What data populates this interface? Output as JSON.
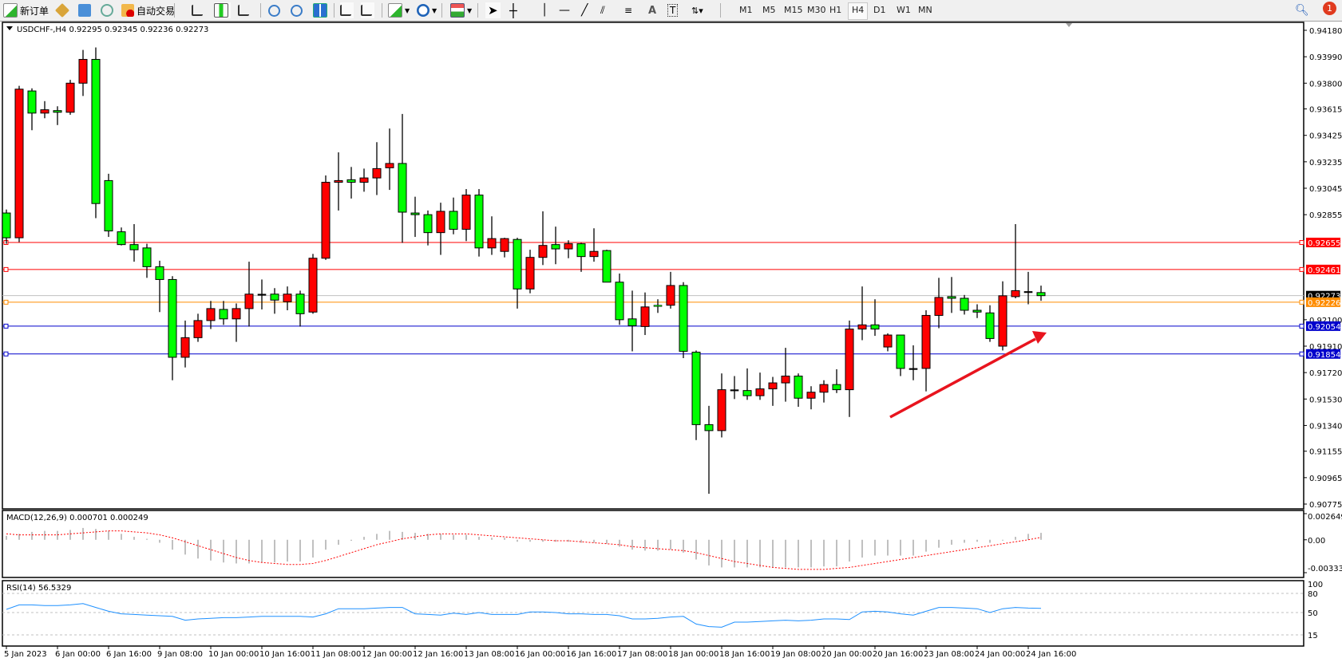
{
  "toolbar": {
    "new_order_label": "新订单",
    "auto_trade_label": "自动交易",
    "timeframes": [
      "M1",
      "M5",
      "M15",
      "M30",
      "H1",
      "H4",
      "D1",
      "W1",
      "MN"
    ],
    "active_timeframe": "H4",
    "notification_count": "1"
  },
  "chart": {
    "header": "USDCHF-,H4  0.92295 0.92345 0.92236 0.92273"
  },
  "chart_data": {
    "type": "candlestick",
    "symbol": "USDCHF-",
    "timeframe": "H4",
    "up_color": "#ff0000",
    "down_color": "#00ff00",
    "ylim": [
      0.90775,
      0.9418
    ],
    "price_ticks": [
      "0.94180",
      "0.93990",
      "0.93800",
      "0.93615",
      "0.93425",
      "0.93235",
      "0.93045",
      "0.92855",
      "0.92100",
      "0.91910",
      "0.91720",
      "0.91530",
      "0.91340",
      "0.91155",
      "0.90965",
      "0.90775"
    ],
    "time_labels": [
      "5 Jan 2023",
      "6 Jan 00:00",
      "6 Jan 16:00",
      "9 Jan 08:00",
      "10 Jan 00:00",
      "10 Jan 16:00",
      "11 Jan 08:00",
      "12 Jan 00:00",
      "12 Jan 16:00",
      "13 Jan 08:00",
      "16 Jan 00:00",
      "16 Jan 16:00",
      "17 Jan 08:00",
      "18 Jan 00:00",
      "18 Jan 16:00",
      "19 Jan 08:00",
      "20 Jan 00:00",
      "20 Jan 16:00",
      "23 Jan 08:00",
      "24 Jan 00:00",
      "24 Jan 16:00"
    ],
    "current_price": {
      "value": 0.92273,
      "label": "0.92273",
      "color": "#000000"
    },
    "hlines": [
      {
        "value": 0.92655,
        "label": "0.92655",
        "color": "#ff0000"
      },
      {
        "value": 0.92461,
        "label": "0.92461",
        "color": "#ff0000"
      },
      {
        "value": 0.92226,
        "label": "0.92226",
        "color": "#ff8c00"
      },
      {
        "value": 0.92054,
        "label": "0.92054",
        "color": "#0000cc"
      },
      {
        "value": 0.91854,
        "label": "0.91854",
        "color": "#0000cc"
      }
    ],
    "trend_arrow": {
      "from": [
        70,
        0.9135
      ],
      "to": [
        82,
        0.9202
      ],
      "color": "#e8141e"
    },
    "candles": [
      [
        0.92867,
        0.92892,
        0.92646,
        0.92689
      ],
      [
        0.92689,
        0.93781,
        0.92658,
        0.93757
      ],
      [
        0.93744,
        0.93763,
        0.93462,
        0.93585
      ],
      [
        0.93585,
        0.93671,
        0.93548,
        0.93609
      ],
      [
        0.93603,
        0.93634,
        0.93499,
        0.93591
      ],
      [
        0.93591,
        0.93824,
        0.93573,
        0.938
      ],
      [
        0.938,
        0.94039,
        0.93708,
        0.93971
      ],
      [
        0.93971,
        0.94057,
        0.9283,
        0.92935
      ],
      [
        0.931,
        0.93149,
        0.92695,
        0.92738
      ],
      [
        0.92732,
        0.92763,
        0.92634,
        0.9264
      ],
      [
        0.9264,
        0.92787,
        0.92517,
        0.92603
      ],
      [
        0.92616,
        0.92646,
        0.92401,
        0.92481
      ],
      [
        0.92481,
        0.92524,
        0.92155,
        0.92389
      ],
      [
        0.92389,
        0.92413,
        0.91665,
        0.9183
      ],
      [
        0.9183,
        0.92094,
        0.91757,
        0.91971
      ],
      [
        0.91971,
        0.92143,
        0.91941,
        0.92094
      ],
      [
        0.92094,
        0.92235,
        0.92033,
        0.9218
      ],
      [
        0.92174,
        0.92235,
        0.92063,
        0.92106
      ],
      [
        0.92106,
        0.92217,
        0.91941,
        0.9218
      ],
      [
        0.9218,
        0.92517,
        0.92051,
        0.92284
      ],
      [
        0.92284,
        0.92389,
        0.92174,
        0.92284
      ],
      [
        0.92284,
        0.92327,
        0.92143,
        0.92241
      ],
      [
        0.92229,
        0.92339,
        0.92168,
        0.92284
      ],
      [
        0.92284,
        0.92309,
        0.92051,
        0.92143
      ],
      [
        0.92155,
        0.92573,
        0.92143,
        0.92542
      ],
      [
        0.92542,
        0.93137,
        0.9253,
        0.93088
      ],
      [
        0.93088,
        0.93303,
        0.92885,
        0.931
      ],
      [
        0.93106,
        0.93198,
        0.92971,
        0.93088
      ],
      [
        0.93088,
        0.93186,
        0.9302,
        0.93119
      ],
      [
        0.93119,
        0.93376,
        0.92996,
        0.93186
      ],
      [
        0.93192,
        0.93474,
        0.93033,
        0.93223
      ],
      [
        0.93223,
        0.93579,
        0.92652,
        0.92873
      ],
      [
        0.92867,
        0.92984,
        0.92695,
        0.92855
      ],
      [
        0.92855,
        0.92885,
        0.92634,
        0.92726
      ],
      [
        0.92726,
        0.92941,
        0.92566,
        0.92879
      ],
      [
        0.92879,
        0.92978,
        0.92714,
        0.9275
      ],
      [
        0.9275,
        0.93039,
        0.92665,
        0.92996
      ],
      [
        0.92996,
        0.93039,
        0.92554,
        0.92616
      ],
      [
        0.92616,
        0.92843,
        0.92566,
        0.92683
      ],
      [
        0.92591,
        0.92689,
        0.92548,
        0.92683
      ],
      [
        0.92677,
        0.92689,
        0.9218,
        0.92321
      ],
      [
        0.92321,
        0.92603,
        0.9229,
        0.92548
      ],
      [
        0.92548,
        0.92879,
        0.92493,
        0.92634
      ],
      [
        0.9264,
        0.92769,
        0.92499,
        0.92609
      ],
      [
        0.92609,
        0.92671,
        0.92542,
        0.92646
      ],
      [
        0.92646,
        0.92652,
        0.92444,
        0.92554
      ],
      [
        0.92554,
        0.92757,
        0.92517,
        0.92591
      ],
      [
        0.92597,
        0.92603,
        0.9237,
        0.9237
      ],
      [
        0.9237,
        0.92432,
        0.92063,
        0.921
      ],
      [
        0.92106,
        0.92309,
        0.91873,
        0.92057
      ],
      [
        0.92051,
        0.92296,
        0.9199,
        0.92192
      ],
      [
        0.92204,
        0.92247,
        0.92149,
        0.92203
      ],
      [
        0.92204,
        0.92444,
        0.9218,
        0.92346
      ],
      [
        0.92346,
        0.9237,
        0.91824,
        0.91873
      ],
      [
        0.91867,
        0.91879,
        0.91235,
        0.91346
      ],
      [
        0.91346,
        0.91481,
        0.90849,
        0.91303
      ],
      [
        0.91303,
        0.91714,
        0.91254,
        0.91597
      ],
      [
        0.91597,
        0.91695,
        0.9153,
        0.91597
      ],
      [
        0.91591,
        0.9175,
        0.91524,
        0.91554
      ],
      [
        0.91554,
        0.9172,
        0.91524,
        0.91603
      ],
      [
        0.91603,
        0.91689,
        0.91481,
        0.91646
      ],
      [
        0.91646,
        0.91898,
        0.91511,
        0.91695
      ],
      [
        0.91695,
        0.91714,
        0.91474,
        0.91536
      ],
      [
        0.91536,
        0.91622,
        0.91456,
        0.91579
      ],
      [
        0.91579,
        0.91665,
        0.91505,
        0.91634
      ],
      [
        0.91634,
        0.91744,
        0.91573,
        0.91597
      ],
      [
        0.91597,
        0.92094,
        0.91401,
        0.92033
      ],
      [
        0.92033,
        0.92339,
        0.91953,
        0.92063
      ],
      [
        0.92063,
        0.92247,
        0.91984,
        0.92033
      ],
      [
        0.91904,
        0.92002,
        0.91873,
        0.9199
      ],
      [
        0.9199,
        0.9199,
        0.91695,
        0.9175
      ],
      [
        0.9175,
        0.91916,
        0.91665,
        0.9175
      ],
      [
        0.9175,
        0.92168,
        0.91585,
        0.92131
      ],
      [
        0.92131,
        0.92401,
        0.92039,
        0.9226
      ],
      [
        0.92266,
        0.92407,
        0.92149,
        0.92254
      ],
      [
        0.92254,
        0.92278,
        0.92137,
        0.92168
      ],
      [
        0.92168,
        0.92211,
        0.92112,
        0.92155
      ],
      [
        0.92149,
        0.92204,
        0.91941,
        0.91965
      ],
      [
        0.9191,
        0.92376,
        0.91879,
        0.92272
      ],
      [
        0.92266,
        0.92787,
        0.92254,
        0.92309
      ],
      [
        0.92303,
        0.92444,
        0.92211,
        0.92303
      ],
      [
        0.92295,
        0.92345,
        0.92236,
        0.92273
      ]
    ]
  },
  "macd": {
    "label": "MACD(12,26,9) 0.000701 0.000249",
    "ticks": [
      "0.002649",
      "0.00",
      "-0.003333"
    ],
    "ylim": [
      -0.003333,
      0.002649
    ],
    "histogram_color": "#c0c0c0",
    "signal_color": "#ff0000",
    "histogram": [
      0.0004,
      0.0006,
      0.0008,
      0.0009,
      0.0009,
      0.001,
      0.0012,
      0.0011,
      0.0009,
      0.0006,
      0.0003,
      0.0001,
      -0.0003,
      -0.001,
      -0.0015,
      -0.0019,
      -0.0021,
      -0.0023,
      -0.0024,
      -0.0024,
      -0.0023,
      -0.0023,
      -0.0022,
      -0.0022,
      -0.0018,
      -0.001,
      -0.0005,
      -0.0001,
      0.0003,
      0.0006,
      0.0009,
      0.0008,
      0.0007,
      0.0006,
      0.0006,
      0.0005,
      0.0005,
      0.0003,
      0.0002,
      0.0002,
      -0.0002,
      -0.0002,
      -0.0002,
      -0.0002,
      -0.0002,
      -0.0003,
      -0.0003,
      -0.0004,
      -0.0007,
      -0.001,
      -0.0011,
      -0.0011,
      -0.001,
      -0.0013,
      -0.002,
      -0.0026,
      -0.0028,
      -0.0028,
      -0.0028,
      -0.0028,
      -0.0028,
      -0.0028,
      -0.0028,
      -0.0028,
      -0.0027,
      -0.0027,
      -0.0022,
      -0.0018,
      -0.0016,
      -0.0016,
      -0.0016,
      -0.0016,
      -0.0012,
      -0.0008,
      -0.0005,
      -0.0003,
      -0.0002,
      -0.0003,
      0.0,
      0.0003,
      0.0006,
      0.000701
    ],
    "signal": [
      0.0006,
      0.0005,
      0.0005,
      0.0005,
      0.0005,
      0.0006,
      0.0007,
      0.0008,
      0.0009,
      0.0009,
      0.0008,
      0.0007,
      0.0005,
      0.0002,
      -0.0002,
      -0.0006,
      -0.001,
      -0.0014,
      -0.0018,
      -0.0021,
      -0.0023,
      -0.0024,
      -0.0025,
      -0.0025,
      -0.0024,
      -0.0021,
      -0.0017,
      -0.0013,
      -0.0009,
      -0.0005,
      -0.0002,
      0.0001,
      0.0003,
      0.0005,
      0.0006,
      0.0006,
      0.0006,
      0.0005,
      0.0004,
      0.0003,
      0.0002,
      0.0001,
      0.0,
      -0.0001,
      -0.0001,
      -0.0002,
      -0.0003,
      -0.0004,
      -0.0005,
      -0.0007,
      -0.0008,
      -0.0009,
      -0.001,
      -0.0011,
      -0.0013,
      -0.0016,
      -0.0019,
      -0.0022,
      -0.0024,
      -0.0026,
      -0.0028,
      -0.0029,
      -0.003,
      -0.003,
      -0.003,
      -0.0029,
      -0.0028,
      -0.0026,
      -0.0024,
      -0.0022,
      -0.002,
      -0.0018,
      -0.0016,
      -0.0014,
      -0.0012,
      -0.001,
      -0.0008,
      -0.0006,
      -0.0004,
      -0.0002,
      0.0,
      0.000249
    ]
  },
  "rsi": {
    "label": "RSI(14) 56.5329",
    "ticks": [
      "100",
      "80",
      "50",
      "15"
    ],
    "levels": [
      80,
      50,
      15
    ],
    "line_color": "#1e90ff",
    "values": [
      55,
      62,
      62,
      61,
      61,
      62,
      64,
      58,
      52,
      48,
      47,
      46,
      45,
      44,
      38,
      40,
      41,
      42,
      42,
      43,
      44,
      44,
      44,
      44,
      43,
      48,
      56,
      56,
      56,
      57,
      58,
      58,
      48,
      47,
      46,
      49,
      47,
      50,
      47,
      47,
      47,
      51,
      51,
      50,
      48,
      48,
      47,
      47,
      45,
      40,
      40,
      41,
      43,
      44,
      32,
      28,
      27,
      35,
      35,
      36,
      37,
      38,
      37,
      38,
      40,
      40,
      39,
      51,
      52,
      51,
      48,
      46,
      52,
      58,
      58,
      57,
      56,
      50,
      56,
      58,
      57,
      56.5329
    ]
  }
}
